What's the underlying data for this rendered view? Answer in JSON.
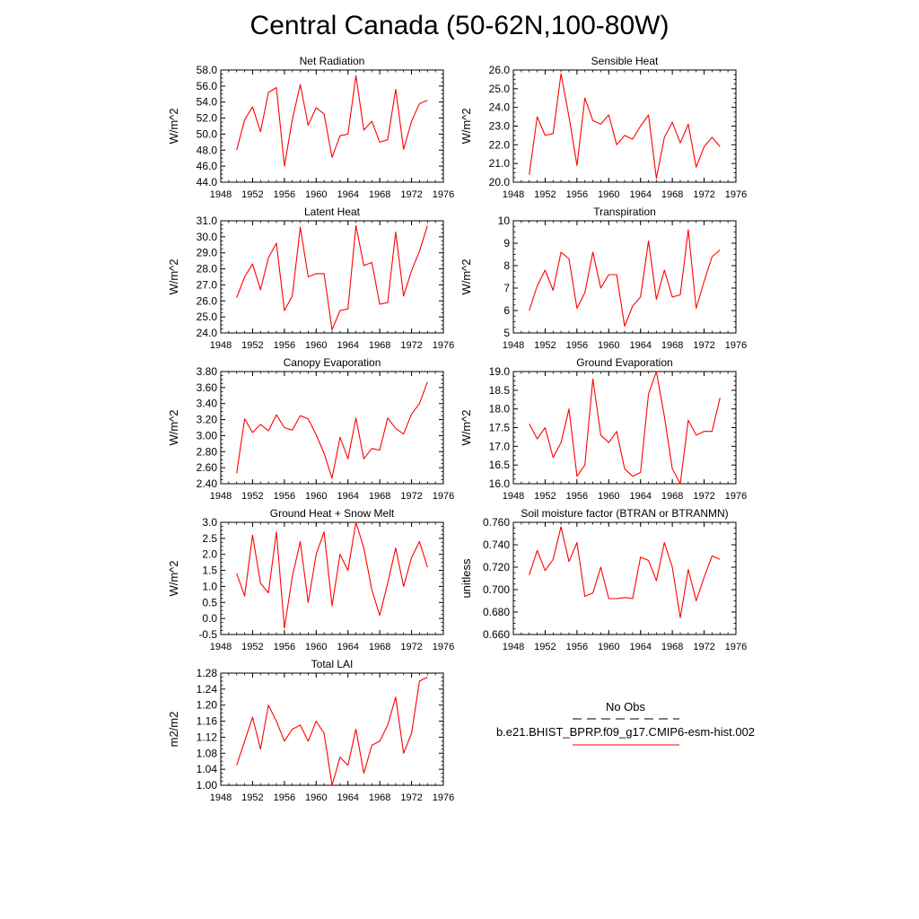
{
  "figure": {
    "title": "Central Canada (50-62N,100-80W)",
    "line_color": "#ff0000"
  },
  "legend": {
    "obs_label": "No Obs",
    "model_label": "b.e21.BHIST_BPRP.f09_g17.CMIP6-esm-hist.002"
  },
  "chart_data": [
    {
      "type": "line",
      "title": "Net Radiation",
      "ylabel": "W/m^2",
      "x": [
        1950,
        1951,
        1952,
        1953,
        1954,
        1955,
        1956,
        1957,
        1958,
        1959,
        1960,
        1961,
        1962,
        1963,
        1964,
        1965,
        1966,
        1967,
        1968,
        1969,
        1970,
        1971,
        1972,
        1973,
        1974
      ],
      "y": [
        48.0,
        51.8,
        53.4,
        50.3,
        55.2,
        55.8,
        46.0,
        51.8,
        56.2,
        51.1,
        53.3,
        52.5,
        47.1,
        49.8,
        50.0,
        57.3,
        50.5,
        51.6,
        49.0,
        49.3,
        55.6,
        48.1,
        51.6,
        53.8,
        54.2
      ],
      "xlim": [
        1948,
        1976
      ],
      "xticks": [
        "1948",
        "1952",
        "1956",
        "1960",
        "1964",
        "1968",
        "1972",
        "1976"
      ],
      "ylim": [
        44.0,
        58.0
      ],
      "yticks": [
        "44.0",
        "46.0",
        "48.0",
        "50.0",
        "52.0",
        "54.0",
        "56.0",
        "58.0"
      ]
    },
    {
      "type": "line",
      "title": "Sensible Heat",
      "ylabel": "W/m^2",
      "x": [
        1950,
        1951,
        1952,
        1953,
        1954,
        1955,
        1956,
        1957,
        1958,
        1959,
        1960,
        1961,
        1962,
        1963,
        1964,
        1965,
        1966,
        1967,
        1968,
        1969,
        1970,
        1971,
        1972,
        1973,
        1974
      ],
      "y": [
        20.4,
        23.5,
        22.5,
        22.6,
        25.8,
        23.5,
        20.9,
        24.5,
        23.3,
        23.1,
        23.6,
        22.0,
        22.5,
        22.3,
        23.0,
        23.6,
        20.2,
        22.4,
        23.2,
        22.1,
        23.1,
        20.8,
        21.9,
        22.4,
        21.9
      ],
      "xlim": [
        1948,
        1976
      ],
      "xticks": [
        "1948",
        "1952",
        "1956",
        "1960",
        "1964",
        "1968",
        "1972",
        "1976"
      ],
      "ylim": [
        20.0,
        26.0
      ],
      "yticks": [
        "20.0",
        "21.0",
        "22.0",
        "23.0",
        "24.0",
        "25.0",
        "26.0"
      ]
    },
    {
      "type": "line",
      "title": "Latent Heat",
      "ylabel": "W/m^2",
      "x": [
        1950,
        1951,
        1952,
        1953,
        1954,
        1955,
        1956,
        1957,
        1958,
        1959,
        1960,
        1961,
        1962,
        1963,
        1964,
        1965,
        1966,
        1967,
        1968,
        1969,
        1970,
        1971,
        1972,
        1973,
        1974
      ],
      "y": [
        26.2,
        27.5,
        28.3,
        26.7,
        28.7,
        29.6,
        25.4,
        26.3,
        30.6,
        27.5,
        27.7,
        27.7,
        24.2,
        25.4,
        25.5,
        30.7,
        28.2,
        28.4,
        25.8,
        25.9,
        30.3,
        26.3,
        27.9,
        29.1,
        30.7
      ],
      "xlim": [
        1948,
        1976
      ],
      "xticks": [
        "1948",
        "1952",
        "1956",
        "1960",
        "1964",
        "1968",
        "1972",
        "1976"
      ],
      "ylim": [
        24.0,
        31.0
      ],
      "yticks": [
        "24.0",
        "25.0",
        "26.0",
        "27.0",
        "28.0",
        "29.0",
        "30.0",
        "31.0"
      ]
    },
    {
      "type": "line",
      "title": "Transpiration",
      "ylabel": "W/m^2",
      "x": [
        1950,
        1951,
        1952,
        1953,
        1954,
        1955,
        1956,
        1957,
        1958,
        1959,
        1960,
        1961,
        1962,
        1963,
        1964,
        1965,
        1966,
        1967,
        1968,
        1969,
        1970,
        1971,
        1972,
        1973,
        1974
      ],
      "y": [
        6.0,
        7.1,
        7.8,
        6.9,
        8.6,
        8.3,
        6.1,
        6.8,
        8.6,
        7.0,
        7.6,
        7.6,
        5.3,
        6.2,
        6.6,
        9.1,
        6.5,
        7.8,
        6.6,
        6.7,
        9.6,
        6.1,
        7.3,
        8.4,
        8.7
      ],
      "xlim": [
        1948,
        1976
      ],
      "xticks": [
        "1948",
        "1952",
        "1956",
        "1960",
        "1964",
        "1968",
        "1972",
        "1976"
      ],
      "ylim": [
        5,
        10
      ],
      "yticks": [
        "5",
        "6",
        "7",
        "8",
        "9",
        "10"
      ]
    },
    {
      "type": "line",
      "title": "Canopy Evaporation",
      "ylabel": "W/m^2",
      "x": [
        1950,
        1951,
        1952,
        1953,
        1954,
        1955,
        1956,
        1957,
        1958,
        1959,
        1960,
        1961,
        1962,
        1963,
        1964,
        1965,
        1966,
        1967,
        1968,
        1969,
        1970,
        1971,
        1972,
        1973,
        1974
      ],
      "y": [
        2.53,
        3.21,
        3.04,
        3.14,
        3.06,
        3.26,
        3.1,
        3.07,
        3.25,
        3.21,
        3.01,
        2.78,
        2.47,
        2.98,
        2.71,
        3.22,
        2.71,
        2.84,
        2.82,
        3.22,
        3.09,
        3.02,
        3.27,
        3.4,
        3.67
      ],
      "xlim": [
        1948,
        1976
      ],
      "xticks": [
        "1948",
        "1952",
        "1956",
        "1960",
        "1964",
        "1968",
        "1972",
        "1976"
      ],
      "ylim": [
        2.4,
        3.8
      ],
      "yticks": [
        "2.40",
        "2.60",
        "2.80",
        "3.00",
        "3.20",
        "3.40",
        "3.60",
        "3.80"
      ]
    },
    {
      "type": "line",
      "title": "Ground Evaporation",
      "ylabel": "W/m^2",
      "x": [
        1950,
        1951,
        1952,
        1953,
        1954,
        1955,
        1956,
        1957,
        1958,
        1959,
        1960,
        1961,
        1962,
        1963,
        1964,
        1965,
        1966,
        1967,
        1968,
        1969,
        1970,
        1971,
        1972,
        1973,
        1974
      ],
      "y": [
        17.6,
        17.2,
        17.5,
        16.7,
        17.1,
        18.0,
        16.2,
        16.5,
        18.8,
        17.3,
        17.1,
        17.4,
        16.4,
        16.2,
        16.3,
        18.4,
        19.0,
        17.8,
        16.4,
        16.0,
        17.7,
        17.3,
        17.4,
        17.4,
        18.3
      ],
      "xlim": [
        1948,
        1976
      ],
      "xticks": [
        "1948",
        "1952",
        "1956",
        "1960",
        "1964",
        "1968",
        "1972",
        "1976"
      ],
      "ylim": [
        16.0,
        19.0
      ],
      "yticks": [
        "16.0",
        "16.5",
        "17.0",
        "17.5",
        "18.0",
        "18.5",
        "19.0"
      ]
    },
    {
      "type": "line",
      "title": "Ground Heat + Snow Melt",
      "ylabel": "W/m^2",
      "x": [
        1950,
        1951,
        1952,
        1953,
        1954,
        1955,
        1956,
        1957,
        1958,
        1959,
        1960,
        1961,
        1962,
        1963,
        1964,
        1965,
        1966,
        1967,
        1968,
        1969,
        1970,
        1971,
        1972,
        1973,
        1974
      ],
      "y": [
        1.4,
        0.7,
        2.6,
        1.1,
        0.8,
        2.7,
        -0.3,
        1.3,
        2.4,
        0.5,
        2.0,
        2.7,
        0.4,
        2.0,
        1.5,
        3.0,
        2.2,
        0.9,
        0.1,
        1.1,
        2.2,
        1.0,
        1.9,
        2.4,
        1.6
      ],
      "xlim": [
        1948,
        1976
      ],
      "xticks": [
        "1948",
        "1952",
        "1956",
        "1960",
        "1964",
        "1968",
        "1972",
        "1976"
      ],
      "ylim": [
        -0.5,
        3.0
      ],
      "yticks": [
        "-0.5",
        "0.0",
        "0.5",
        "1.0",
        "1.5",
        "2.0",
        "2.5",
        "3.0"
      ]
    },
    {
      "type": "line",
      "title": "Soil moisture factor (BTRAN or BTRANMN)",
      "ylabel": "unitless",
      "x": [
        1950,
        1951,
        1952,
        1953,
        1954,
        1955,
        1956,
        1957,
        1958,
        1959,
        1960,
        1961,
        1962,
        1963,
        1964,
        1965,
        1966,
        1967,
        1968,
        1969,
        1970,
        1971,
        1972,
        1973,
        1974
      ],
      "y": [
        0.713,
        0.735,
        0.717,
        0.727,
        0.756,
        0.725,
        0.742,
        0.694,
        0.697,
        0.72,
        0.692,
        0.692,
        0.693,
        0.692,
        0.729,
        0.726,
        0.708,
        0.742,
        0.72,
        0.675,
        0.718,
        0.69,
        0.711,
        0.73,
        0.727
      ],
      "xlim": [
        1948,
        1976
      ],
      "xticks": [
        "1948",
        "1952",
        "1956",
        "1960",
        "1964",
        "1968",
        "1972",
        "1976"
      ],
      "ylim": [
        0.66,
        0.76
      ],
      "yticks": [
        "0.660",
        "0.680",
        "0.700",
        "0.720",
        "0.740",
        "0.760"
      ]
    },
    {
      "type": "line",
      "title": "Total LAI",
      "ylabel": "m2/m2",
      "x": [
        1950,
        1951,
        1952,
        1953,
        1954,
        1955,
        1956,
        1957,
        1958,
        1959,
        1960,
        1961,
        1962,
        1963,
        1964,
        1965,
        1966,
        1967,
        1968,
        1969,
        1970,
        1971,
        1972,
        1973,
        1974
      ],
      "y": [
        1.05,
        1.11,
        1.17,
        1.09,
        1.2,
        1.16,
        1.11,
        1.14,
        1.15,
        1.11,
        1.16,
        1.13,
        1.0,
        1.07,
        1.05,
        1.14,
        1.03,
        1.1,
        1.11,
        1.15,
        1.22,
        1.08,
        1.13,
        1.26,
        1.27
      ],
      "xlim": [
        1948,
        1976
      ],
      "xticks": [
        "1948",
        "1952",
        "1956",
        "1960",
        "1964",
        "1968",
        "1972",
        "1976"
      ],
      "ylim": [
        1.0,
        1.28
      ],
      "yticks": [
        "1.00",
        "1.04",
        "1.08",
        "1.12",
        "1.16",
        "1.20",
        "1.24",
        "1.28"
      ]
    }
  ]
}
